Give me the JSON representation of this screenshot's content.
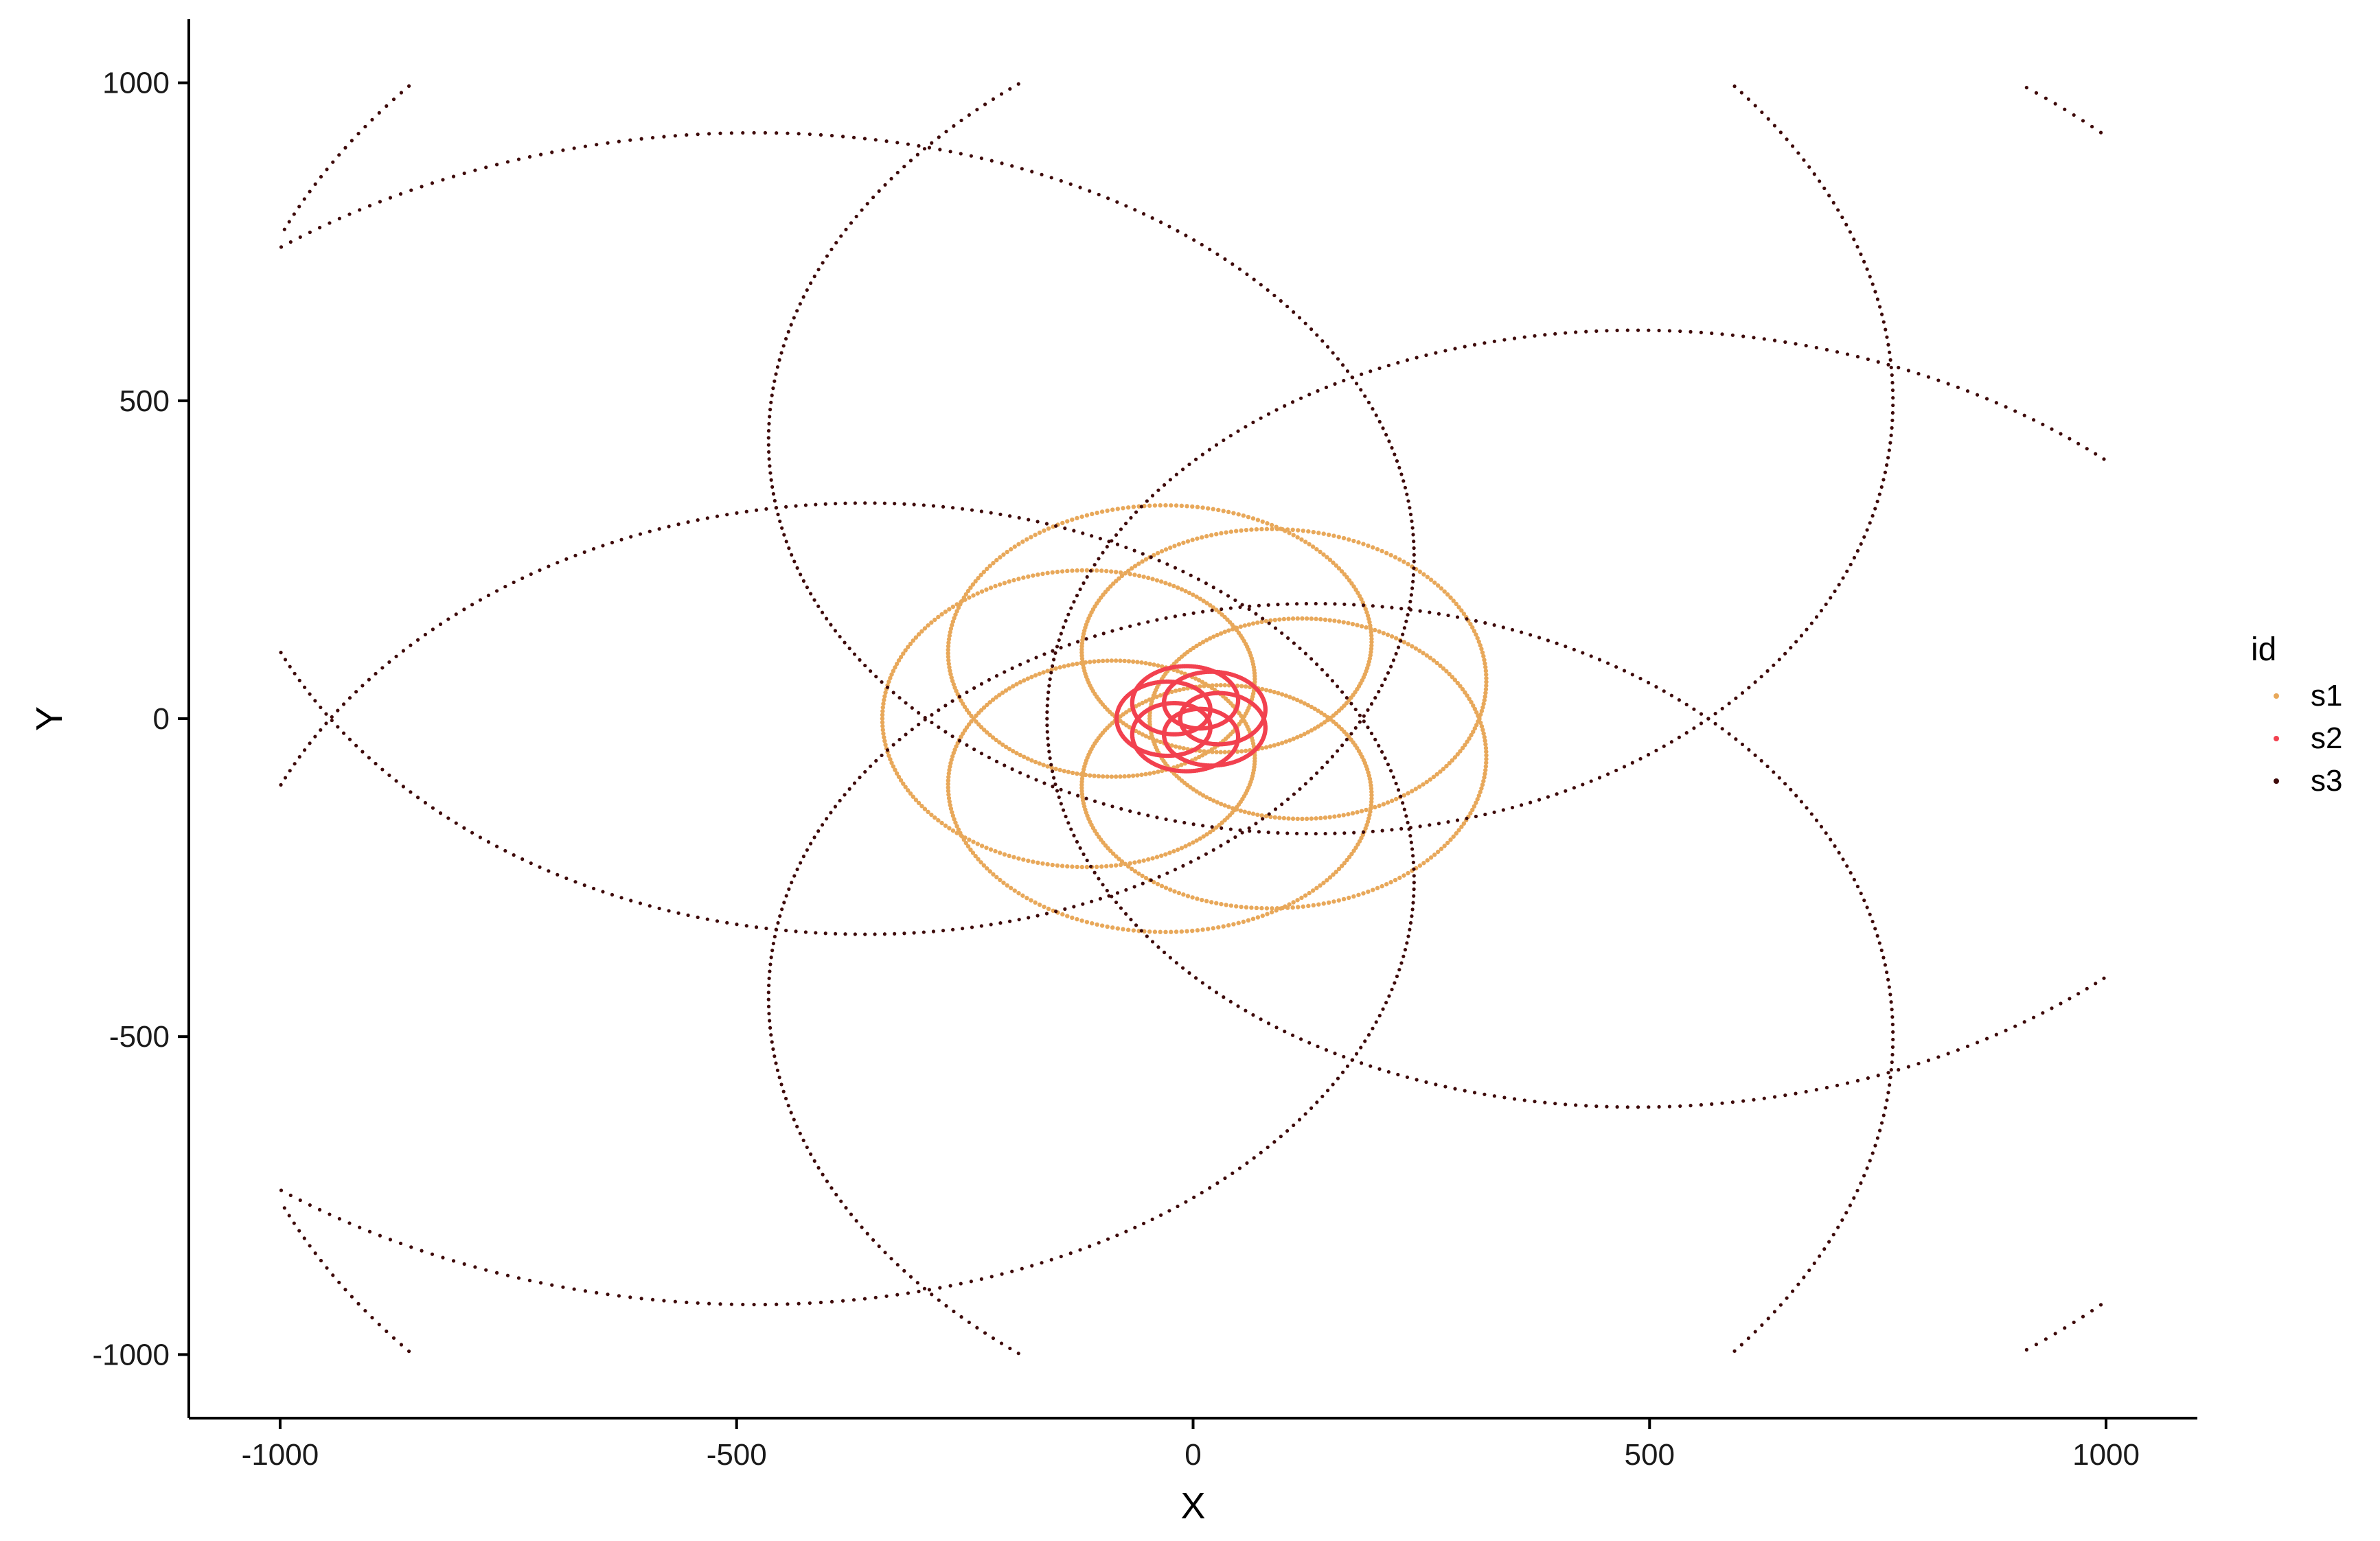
{
  "chart_data": {
    "type": "scatter",
    "title": "",
    "xlabel": "X",
    "ylabel": "Y",
    "xlim": [
      -1100,
      1100
    ],
    "ylim": [
      -1100,
      1100
    ],
    "x_ticks": [
      -1000,
      -500,
      0,
      500,
      1000
    ],
    "y_ticks": [
      -1000,
      -500,
      0,
      500,
      1000
    ],
    "x_tick_labels": [
      "-1000",
      "-500",
      "0",
      "500",
      "1000"
    ],
    "y_tick_labels": [
      "-1000",
      "-500",
      "0",
      "500",
      "1000"
    ],
    "grid": false,
    "legend": {
      "title": "id",
      "placement": "right"
    },
    "series": [
      {
        "name": "s1",
        "color": "#E8A85A",
        "curve": {
          "kind": "epitrochoid",
          "R": 122,
          "r": 24.4,
          "d": 194,
          "petals": 5,
          "points": 1400
        }
      },
      {
        "name": "s2",
        "color": "#F2414F",
        "curve": {
          "kind": "epitrochoid",
          "R": 29,
          "r": 5.8,
          "d": 49,
          "petals": 5,
          "points": 1000
        }
      },
      {
        "name": "s3",
        "color": "#3E0A0A",
        "curve": {
          "kind": "epitrochoid",
          "R": 500,
          "r": 100,
          "d": 760,
          "petals": 5,
          "points": 2400,
          "clip": [
            -1000,
            1000
          ]
        }
      }
    ]
  }
}
